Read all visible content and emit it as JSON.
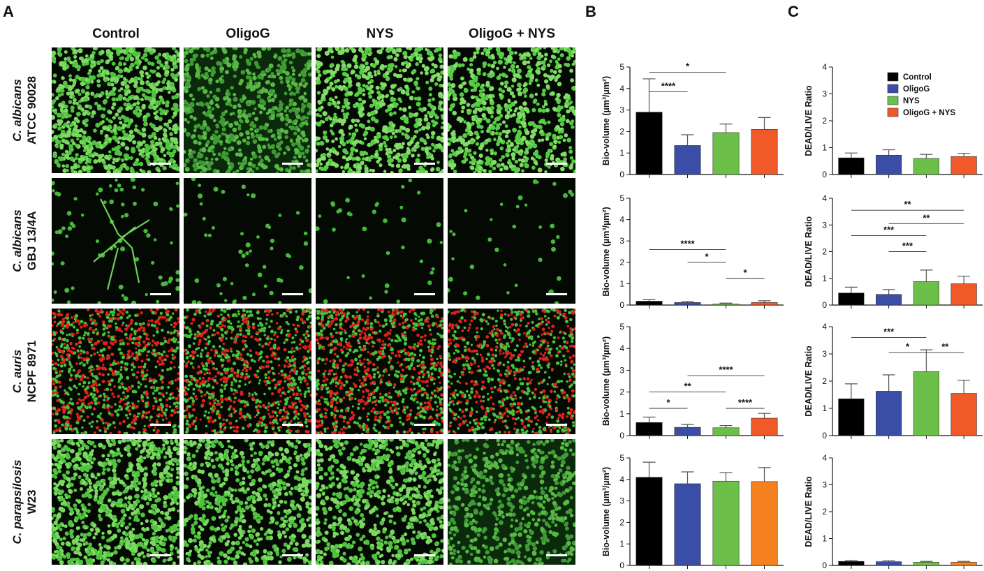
{
  "figure": {
    "panels": {
      "a": "A",
      "b": "B",
      "c": "C"
    },
    "columns": [
      "Control",
      "OligoG",
      "NYS",
      "OligoG + NYS"
    ],
    "rows": [
      {
        "species": "C. albicans",
        "strain": "ATCC 90028"
      },
      {
        "species": "C. albicans",
        "strain": "GBJ 13/4A"
      },
      {
        "species": "C. auris",
        "strain": "NCPF 8971"
      },
      {
        "species": "C. parapsilosis",
        "strain": "W23"
      }
    ],
    "micrographs": [
      [
        {
          "style": "dense-green",
          "density": 1.0
        },
        {
          "style": "dim-green",
          "density": 0.75
        },
        {
          "style": "green-cells",
          "density": 0.8
        },
        {
          "style": "green-cells",
          "density": 0.8
        }
      ],
      [
        {
          "style": "hyphae",
          "density": 0.08
        },
        {
          "style": "sparse",
          "density": 0.06
        },
        {
          "style": "sparse",
          "density": 0.04
        },
        {
          "style": "sparse",
          "density": 0.04
        }
      ],
      [
        {
          "style": "red-green",
          "density": 0.9
        },
        {
          "style": "red-green",
          "density": 0.9
        },
        {
          "style": "red-green",
          "density": 0.95
        },
        {
          "style": "red-green",
          "density": 0.8
        }
      ],
      [
        {
          "style": "dense-green",
          "density": 1.0
        },
        {
          "style": "dense-green",
          "density": 0.75
        },
        {
          "style": "dense-green",
          "density": 0.8
        },
        {
          "style": "dim-green",
          "density": 0.6
        }
      ]
    ]
  },
  "legend": [
    "Control",
    "OligoG",
    "NYS",
    "OligoG + NYS"
  ],
  "colors": {
    "control": "#000000",
    "oligog": "#3a4ea8",
    "nys": "#6cc04a",
    "combo": "#f05a28",
    "combo_alt": "#f5821f"
  },
  "chart_data": [
    {
      "panel": "B",
      "row": 1,
      "type": "bar",
      "categories": [
        "Control",
        "OligoG",
        "NYS",
        "OligoG + NYS"
      ],
      "values": [
        2.9,
        1.35,
        1.95,
        2.1
      ],
      "errors": [
        1.55,
        0.5,
        0.4,
        0.55
      ],
      "ylabel": "Bio-volume (µm³/µm²)",
      "ylim": [
        0,
        5
      ],
      "yticks": [
        "0",
        "1",
        "2",
        "3",
        "4",
        "5"
      ],
      "colors": [
        "#000000",
        "#3a4ea8",
        "#6cc04a",
        "#f05a28"
      ],
      "sig": [
        {
          "a": 0,
          "b": 2,
          "label": "*",
          "y": 4.75
        },
        {
          "a": 0,
          "b": 1,
          "label": "****",
          "y": 3.85
        }
      ]
    },
    {
      "panel": "C",
      "row": 1,
      "type": "bar",
      "categories": [
        "Control",
        "OligoG",
        "NYS",
        "OligoG + NYS"
      ],
      "values": [
        0.62,
        0.72,
        0.6,
        0.67
      ],
      "errors": [
        0.18,
        0.2,
        0.15,
        0.12
      ],
      "ylabel": "DEAD/LIVE Ratio",
      "ylim": [
        0,
        4
      ],
      "yticks": [
        "0",
        "1",
        "2",
        "3",
        "4"
      ],
      "colors": [
        "#000000",
        "#3a4ea8",
        "#6cc04a",
        "#f05a28"
      ],
      "sig": [],
      "legend": true
    },
    {
      "panel": "B",
      "row": 2,
      "type": "bar",
      "categories": [
        "Control",
        "OligoG",
        "NYS",
        "OligoG + NYS"
      ],
      "values": [
        0.18,
        0.12,
        0.05,
        0.12
      ],
      "errors": [
        0.07,
        0.05,
        0.04,
        0.08
      ],
      "ylabel": "Bio-volume (µm³/µm²)",
      "ylim": [
        0,
        5
      ],
      "yticks": [
        "0",
        "1",
        "2",
        "3",
        "4",
        "5"
      ],
      "colors": [
        "#000000",
        "#3a4ea8",
        "#6cc04a",
        "#f05a28"
      ],
      "sig": [
        {
          "a": 0,
          "b": 2,
          "label": "****",
          "y": 2.6
        },
        {
          "a": 1,
          "b": 2,
          "label": "*",
          "y": 2.0
        },
        {
          "a": 2,
          "b": 3,
          "label": "*",
          "y": 1.25
        }
      ]
    },
    {
      "panel": "C",
      "row": 2,
      "type": "bar",
      "categories": [
        "Control",
        "OligoG",
        "NYS",
        "OligoG + NYS"
      ],
      "values": [
        0.45,
        0.4,
        0.88,
        0.8
      ],
      "errors": [
        0.22,
        0.18,
        0.43,
        0.28
      ],
      "ylabel": "DEAD/LIVE Ratio",
      "ylim": [
        0,
        4
      ],
      "yticks": [
        "0",
        "1",
        "2",
        "3",
        "4"
      ],
      "colors": [
        "#000000",
        "#3a4ea8",
        "#6cc04a",
        "#f05a28"
      ],
      "sig": [
        {
          "a": 0,
          "b": 3,
          "label": "**",
          "y": 3.55
        },
        {
          "a": 1,
          "b": 3,
          "label": "**",
          "y": 3.05
        },
        {
          "a": 0,
          "b": 2,
          "label": "***",
          "y": 2.6
        },
        {
          "a": 1,
          "b": 2,
          "label": "***",
          "y": 2.0
        }
      ]
    },
    {
      "panel": "B",
      "row": 3,
      "type": "bar",
      "categories": [
        "Control",
        "OligoG",
        "NYS",
        "OligoG + NYS"
      ],
      "values": [
        0.6,
        0.38,
        0.36,
        0.8
      ],
      "errors": [
        0.25,
        0.13,
        0.1,
        0.22
      ],
      "ylabel": "Bio-volume (µm³/µm²)",
      "ylim": [
        0,
        5
      ],
      "yticks": [
        "0",
        "1",
        "2",
        "3",
        "4",
        "5"
      ],
      "colors": [
        "#000000",
        "#3a4ea8",
        "#6cc04a",
        "#f05a28"
      ],
      "sig": [
        {
          "a": 1,
          "b": 3,
          "label": "****",
          "y": 2.75
        },
        {
          "a": 0,
          "b": 2,
          "label": "**",
          "y": 2.0
        },
        {
          "a": 0,
          "b": 1,
          "label": "*",
          "y": 1.25
        },
        {
          "a": 2,
          "b": 3,
          "label": "****",
          "y": 1.25
        }
      ]
    },
    {
      "panel": "C",
      "row": 3,
      "type": "bar",
      "categories": [
        "Control",
        "OligoG",
        "NYS",
        "OligoG + NYS"
      ],
      "values": [
        1.35,
        1.63,
        2.35,
        1.55
      ],
      "errors": [
        0.55,
        0.6,
        0.8,
        0.48
      ],
      "ylabel": "DEAD/LIVE Ratio",
      "ylim": [
        0,
        4
      ],
      "yticks": [
        "0",
        "1",
        "2",
        "3",
        "4"
      ],
      "colors": [
        "#000000",
        "#3a4ea8",
        "#6cc04a",
        "#f05a28"
      ],
      "sig": [
        {
          "a": 0,
          "b": 2,
          "label": "***",
          "y": 3.6
        },
        {
          "a": 1,
          "b": 2,
          "label": "*",
          "y": 3.05
        },
        {
          "a": 2,
          "b": 3,
          "label": "**",
          "y": 3.05
        }
      ]
    },
    {
      "panel": "B",
      "row": 4,
      "type": "bar",
      "categories": [
        "Control",
        "OligoG",
        "NYS",
        "OligoG + NYS"
      ],
      "values": [
        4.1,
        3.8,
        3.92,
        3.9
      ],
      "errors": [
        0.7,
        0.55,
        0.4,
        0.65
      ],
      "ylabel": "Bio-volume (µm³/µm²)",
      "ylim": [
        0,
        5
      ],
      "yticks": [
        "0",
        "1",
        "2",
        "3",
        "4",
        "5"
      ],
      "colors": [
        "#000000",
        "#3a4ea8",
        "#6cc04a",
        "#f5821f"
      ],
      "sig": []
    },
    {
      "panel": "C",
      "row": 4,
      "type": "bar",
      "categories": [
        "Control",
        "OligoG",
        "NYS",
        "OligoG + NYS"
      ],
      "values": [
        0.15,
        0.14,
        0.12,
        0.12
      ],
      "errors": [
        0.04,
        0.03,
        0.03,
        0.03
      ],
      "ylabel": "DEAD/LIVE Ratio",
      "ylim": [
        0,
        4
      ],
      "yticks": [
        "0",
        "1",
        "2",
        "3",
        "4"
      ],
      "colors": [
        "#000000",
        "#3a4ea8",
        "#6cc04a",
        "#f5821f"
      ],
      "sig": []
    }
  ]
}
